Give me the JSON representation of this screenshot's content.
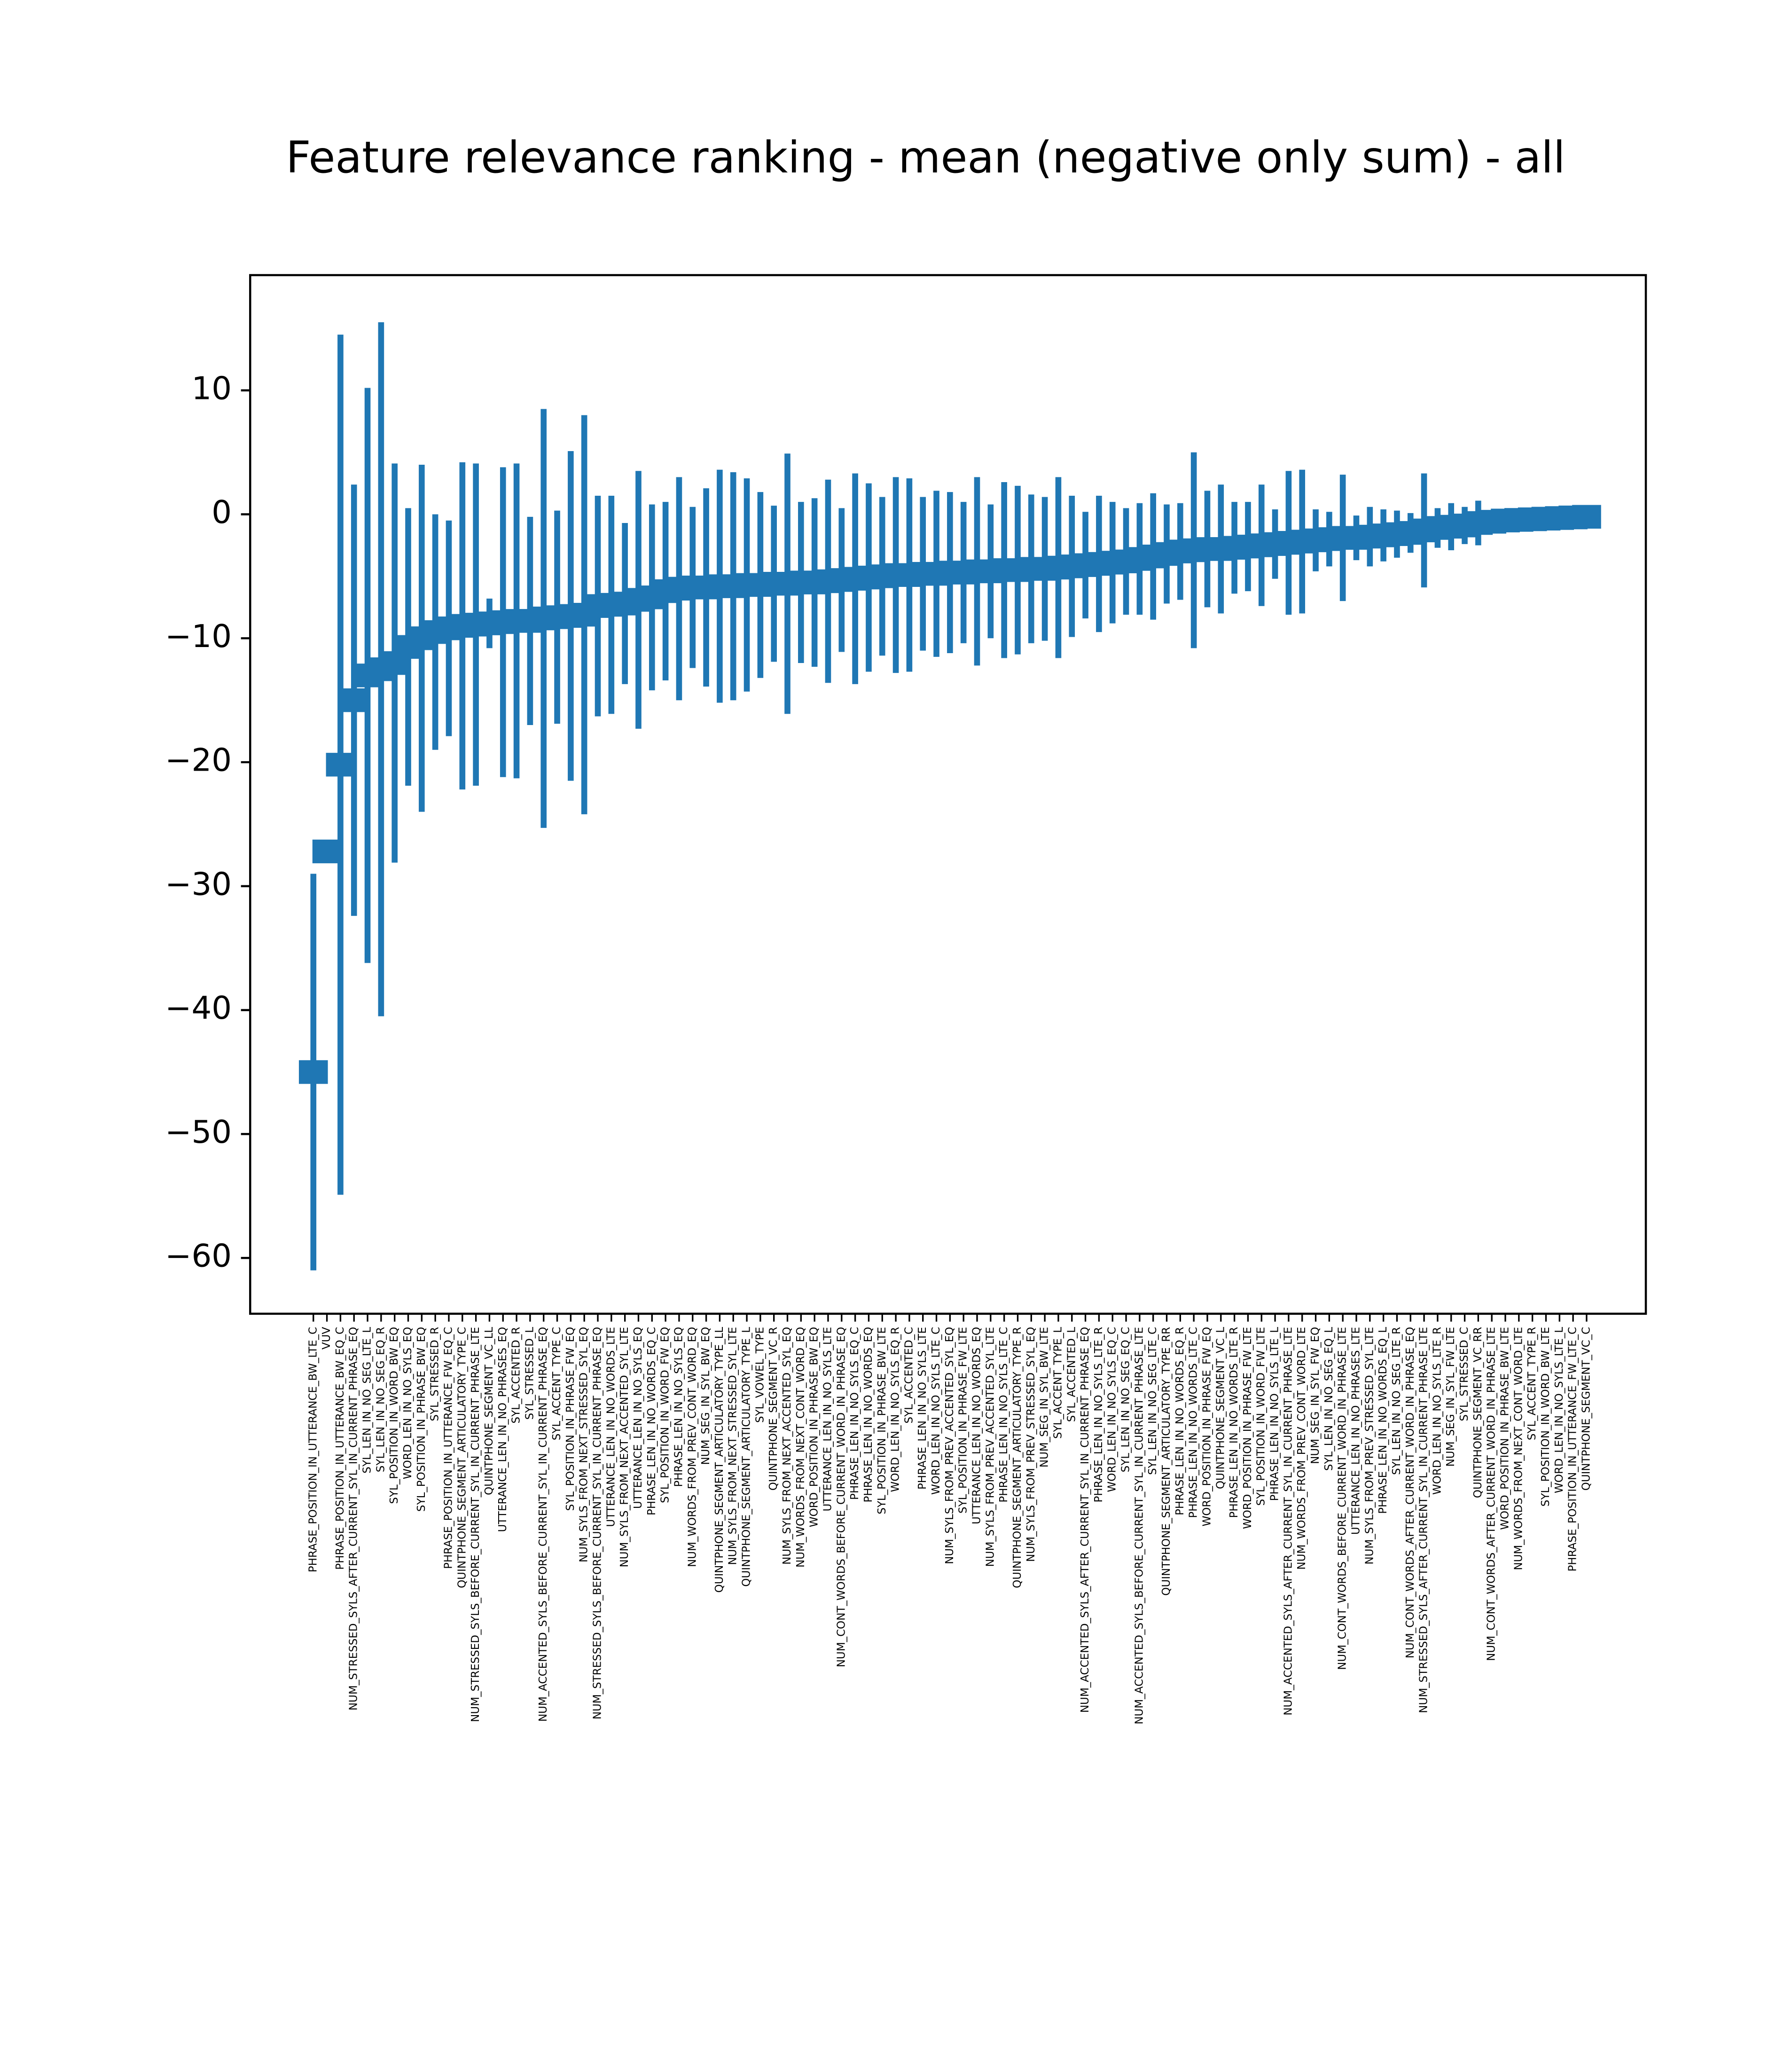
{
  "chart_data": {
    "type": "errorbar",
    "title": "Feature relevance ranking - mean (negative only sum) - all",
    "color": "#1f77b4",
    "categories": [
      "PHRASE_POSITION_IN_UTTERANCE_BW_LTE_C",
      "VUV",
      "PHRASE_POSITION_IN_UTTERANCE_BW_EQ_C",
      "NUM_STRESSED_SYLS_AFTER_CURRENT_SYL_IN_CURRENT_PHRASE_EQ",
      "SYL_LEN_IN_NO_SEG_LTE_L",
      "SYL_LEN_IN_NO_SEG_EQ_R",
      "SYL_POSITION_IN_WORD_BW_EQ",
      "WORD_LEN_IN_NO_SYLS_EQ",
      "SYL_POSITION_IN_PHRASE_BW_EQ",
      "SYL_STRESSED_R",
      "PHRASE_POSITION_IN_UTTERANCE_FW_EQ_C",
      "QUINTPHONE_SEGMENT_ARTICULATORY_TYPE_C",
      "NUM_STRESSED_SYLS_BEFORE_CURRENT_SYL_IN_CURRENT_PHRASE_LTE",
      "QUINTPHONE_SEGMENT_VC_LL",
      "UTTERANCE_LEN_IN_NO_PHRASES_EQ",
      "SYL_ACCENTED_R",
      "SYL_STRESSED_L",
      "NUM_ACCENTED_SYLS_BEFORE_CURRENT_SYL_IN_CURRENT_PHRASE_EQ",
      "SYL_ACCENT_TYPE_C",
      "SYL_POSITION_IN_PHRASE_FW_EQ",
      "NUM_SYLS_FROM_NEXT_STRESSED_SYL_EQ",
      "NUM_STRESSED_SYLS_BEFORE_CURRENT_SYL_IN_CURRENT_PHRASE_EQ",
      "UTTERANCE_LEN_IN_NO_WORDS_LTE",
      "NUM_SYLS_FROM_NEXT_ACCENTED_SYL_LTE",
      "UTTERANCE_LEN_IN_NO_SYLS_EQ",
      "PHRASE_LEN_IN_NO_WORDS_EQ_C",
      "SYL_POSITION_IN_WORD_FW_EQ",
      "PHRASE_LEN_IN_NO_SYLS_EQ",
      "NUM_WORDS_FROM_PREV_CONT_WORD_EQ",
      "NUM_SEG_IN_SYL_BW_EQ",
      "QUINTPHONE_SEGMENT_ARTICULATORY_TYPE_LL",
      "NUM_SYLS_FROM_NEXT_STRESSED_SYL_LTE",
      "QUINTPHONE_SEGMENT_ARTICULATORY_TYPE_L",
      "SYL_VOWEL_TYPE",
      "QUINTPHONE_SEGMENT_VC_R",
      "NUM_SYLS_FROM_NEXT_ACCENTED_SYL_EQ",
      "NUM_WORDS_FROM_NEXT_CONT_WORD_EQ",
      "WORD_POSITION_IN_PHRASE_BW_EQ",
      "UTTERANCE_LEN_IN_NO_SYLS_LTE",
      "NUM_CONT_WORDS_BEFORE_CURRENT_WORD_IN_PHRASE_EQ",
      "PHRASE_LEN_IN_NO_SYLS_EQ_C",
      "PHRASE_LEN_IN_NO_WORDS_EQ",
      "SYL_POSITION_IN_PHRASE_BW_LTE",
      "WORD_LEN_IN_NO_SYLS_EQ_R",
      "SYL_ACCENTED_C",
      "PHRASE_LEN_IN_NO_SYLS_LTE",
      "WORD_LEN_IN_NO_SYLS_LTE_C",
      "NUM_SYLS_FROM_PREV_ACCENTED_SYL_EQ",
      "SYL_POSITION_IN_PHRASE_FW_LTE",
      "UTTERANCE_LEN_IN_NO_WORDS_EQ",
      "NUM_SYLS_FROM_PREV_ACCENTED_SYL_LTE",
      "PHRASE_LEN_IN_NO_SYLS_LTE_C",
      "QUINTPHONE_SEGMENT_ARTICULATORY_TYPE_R",
      "NUM_SYLS_FROM_PREV_STRESSED_SYL_EQ",
      "NUM_SEG_IN_SYL_BW_LTE",
      "SYL_ACCENT_TYPE_L",
      "SYL_ACCENTED_L",
      "NUM_ACCENTED_SYLS_AFTER_CURRENT_SYL_IN_CURRENT_PHRASE_EQ",
      "PHRASE_LEN_IN_NO_SYLS_LTE_R",
      "WORD_LEN_IN_NO_SYLS_EQ_C",
      "SYL_LEN_IN_NO_SEG_EQ_C",
      "NUM_ACCENTED_SYLS_BEFORE_CURRENT_SYL_IN_CURRENT_PHRASE_LTE",
      "SYL_LEN_IN_NO_SEG_LTE_C",
      "QUINTPHONE_SEGMENT_ARTICULATORY_TYPE_RR",
      "PHRASE_LEN_IN_NO_WORDS_EQ_R",
      "PHRASE_LEN_IN_NO_WORDS_LTE_C",
      "WORD_POSITION_IN_PHRASE_FW_EQ",
      "QUINTPHONE_SEGMENT_VC_L",
      "PHRASE_LEN_IN_NO_WORDS_LTE_R",
      "WORD_POSITION_IN_PHRASE_FW_LTE",
      "SYL_POSITION_IN_WORD_FW_LTE",
      "PHRASE_LEN_IN_NO_SYLS_LTE_L",
      "NUM_ACCENTED_SYLS_AFTER_CURRENT_SYL_IN_CURRENT_PHRASE_LTE",
      "NUM_WORDS_FROM_PREV_CONT_WORD_LTE",
      "NUM_SEG_IN_SYL_FW_EQ",
      "SYL_LEN_IN_NO_SEG_EQ_L",
      "NUM_CONT_WORDS_BEFORE_CURRENT_WORD_IN_PHRASE_LTE",
      "UTTERANCE_LEN_IN_NO_PHRASES_LTE",
      "NUM_SYLS_FROM_PREV_STRESSED_SYL_LTE",
      "PHRASE_LEN_IN_NO_WORDS_EQ_L",
      "SYL_LEN_IN_NO_SEG_LTE_R",
      "NUM_CONT_WORDS_AFTER_CURRENT_WORD_IN_PHRASE_EQ",
      "NUM_STRESSED_SYLS_AFTER_CURRENT_SYL_IN_CURRENT_PHRASE_LTE",
      "WORD_LEN_IN_NO_SYLS_LTE_R",
      "NUM_SEG_IN_SYL_FW_LTE",
      "SYL_STRESSED_C",
      "QUINTPHONE_SEGMENT_VC_RR",
      "NUM_CONT_WORDS_AFTER_CURRENT_WORD_IN_PHRASE_LTE",
      "WORD_POSITION_IN_PHRASE_BW_LTE",
      "NUM_WORDS_FROM_NEXT_CONT_WORD_LTE",
      "SYL_ACCENT_TYPE_R",
      "SYL_POSITION_IN_WORD_BW_LTE",
      "WORD_LEN_IN_NO_SYLS_LTE_L",
      "PHRASE_POSITION_IN_UTTERANCE_FW_LTE_C",
      "QUINTPHONE_SEGMENT_VC_C"
    ],
    "values": [
      -45,
      -27.2,
      -20.2,
      -15,
      -13,
      -12.5,
      -12,
      -10.7,
      -10,
      -9.5,
      -9.2,
      -9,
      -8.9,
      -8.8,
      -8.7,
      -8.6,
      -8.6,
      -8.4,
      -8.3,
      -8.2,
      -8.1,
      -7.4,
      -7.3,
      -7.2,
      -6.9,
      -6.7,
      -6.2,
      -6,
      -5.9,
      -5.9,
      -5.8,
      -5.8,
      -5.7,
      -5.7,
      -5.6,
      -5.6,
      -5.5,
      -5.5,
      -5.4,
      -5.3,
      -5.2,
      -5.1,
      -5.0,
      -4.9,
      -4.9,
      -4.8,
      -4.8,
      -4.7,
      -4.7,
      -4.6,
      -4.6,
      -4.5,
      -4.5,
      -4.4,
      -4.4,
      -4.3,
      -4.2,
      -4.1,
      -4.0,
      -3.9,
      -3.8,
      -3.6,
      -3.4,
      -3.2,
      -3.0,
      -2.9,
      -2.8,
      -2.8,
      -2.7,
      -2.6,
      -2.5,
      -2.4,
      -2.3,
      -2.2,
      -2.1,
      -2.0,
      -1.9,
      -1.9,
      -1.8,
      -1.7,
      -1.6,
      -1.5,
      -1.3,
      -1.1,
      -1.0,
      -0.9,
      -0.7,
      -0.6,
      -0.5,
      -0.45,
      -0.4,
      -0.35,
      -0.3,
      -0.25,
      -0.2
    ],
    "errors": [
      16,
      0.5,
      34.7,
      17.4,
      23.2,
      28,
      16.1,
      11.2,
      14,
      9.5,
      8.7,
      13.2,
      13,
      2,
      12.5,
      12.7,
      8.4,
      16.9,
      8.6,
      13.3,
      16.1,
      8.9,
      8.8,
      6.5,
      10.4,
      7.5,
      7.2,
      9,
      6.5,
      8,
      9.4,
      9.2,
      8.6,
      7.5,
      6.3,
      10.5,
      6.5,
      6.8,
      8.2,
      5.8,
      8.5,
      7.6,
      6.4,
      7.9,
      7.8,
      6.2,
      6.7,
      6.5,
      5.7,
      7.6,
      5.4,
      7.1,
      6.8,
      6,
      5.8,
      7.3,
      5.7,
      4.3,
      5.5,
      4.9,
      4.3,
      4.5,
      5.1,
      4,
      3.9,
      7.9,
      4.7,
      5.2,
      3.7,
      3.6,
      4.9,
      2.8,
      5.8,
      5.8,
      2.5,
      2.2,
      5.1,
      1.8,
      2.4,
      2.1,
      1.9,
      1.6,
      4.6,
      1.6,
      1.9,
      1.5,
      1.8,
      0.8,
      0.7,
      0.6,
      0.5,
      0.4,
      0.35,
      0.3,
      0.25
    ],
    "ylim": [
      -64.5,
      19.3
    ],
    "yticks": [
      {
        "value": -60,
        "label": "−60"
      },
      {
        "value": -50,
        "label": "−50"
      },
      {
        "value": -40,
        "label": "−40"
      },
      {
        "value": -30,
        "label": "−30"
      },
      {
        "value": -20,
        "label": "−20"
      },
      {
        "value": -10,
        "label": "−10"
      },
      0,
      10
    ]
  }
}
